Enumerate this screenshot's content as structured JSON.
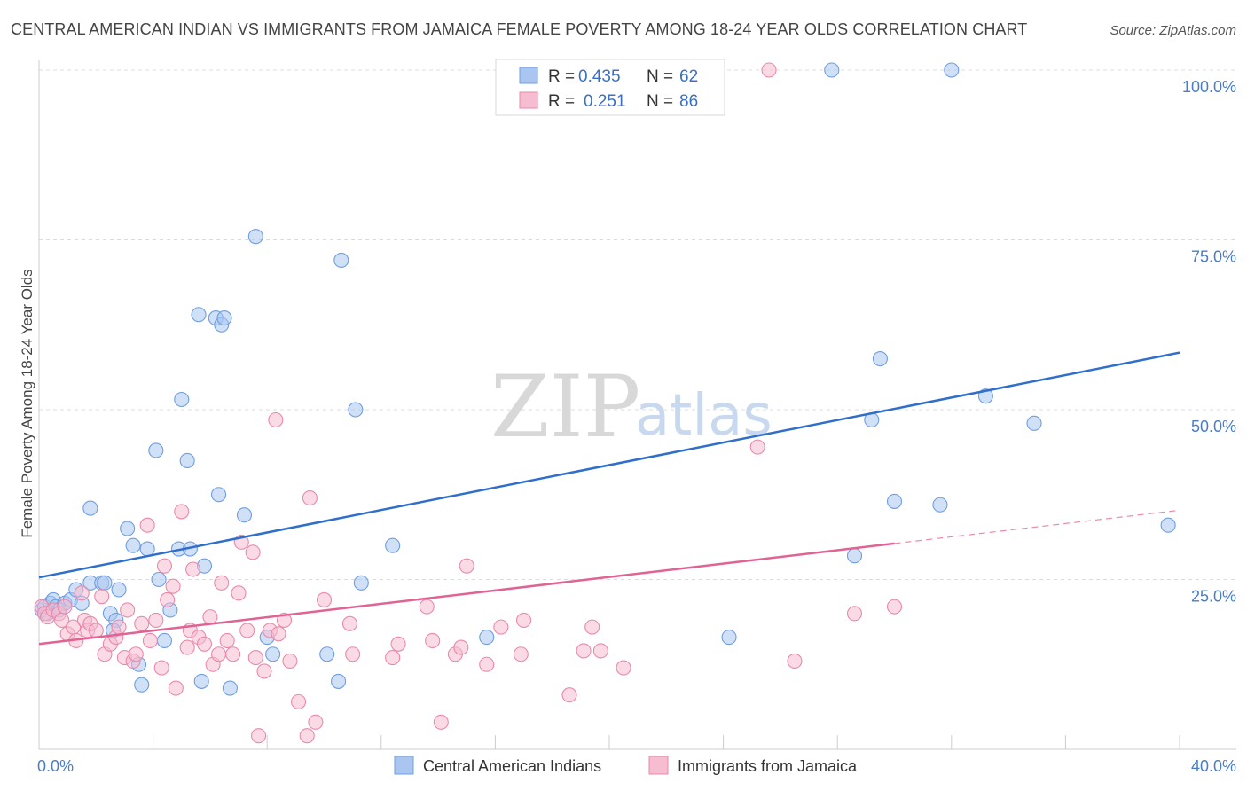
{
  "chart_data": {
    "type": "scatter",
    "title": "CENTRAL AMERICAN INDIAN VS IMMIGRANTS FROM JAMAICA FEMALE POVERTY AMONG 18-24 YEAR OLDS CORRELATION CHART",
    "source": "Source: ZipAtlas.com",
    "xlabel": "",
    "ylabel": "Female Poverty Among 18-24 Year Olds",
    "xlim": [
      0,
      40
    ],
    "ylim": [
      0,
      100
    ],
    "x_tick_labels": {
      "left": "0.0%",
      "right": "40.0%"
    },
    "y_ticks": [
      {
        "value": 25,
        "label": "25.0%"
      },
      {
        "value": 50,
        "label": "50.0%"
      },
      {
        "value": 75,
        "label": "75.0%"
      },
      {
        "value": 100,
        "label": "100.0%"
      }
    ],
    "grid": true,
    "watermark": {
      "part1": "ZIP",
      "part2": "atlas"
    },
    "legend": {
      "r_label": "R =",
      "n_label": "N =",
      "entries": [
        {
          "series": "Central American Indians",
          "r": "0.435",
          "n": "62"
        },
        {
          "series": "Immigrants from Jamaica",
          "r": "0.251",
          "n": "86"
        }
      ]
    },
    "series": [
      {
        "name": "Central American Indians",
        "color": "#6f9ee0",
        "fill": "#aac6f0",
        "trend": {
          "x0": 0,
          "y0": 25.3,
          "x1": 40,
          "y1": 58.4,
          "dashed_to": null
        },
        "points": [
          [
            0.1,
            20.5
          ],
          [
            0.2,
            21.0
          ],
          [
            0.3,
            20.0
          ],
          [
            0.4,
            21.5
          ],
          [
            0.5,
            22.0
          ],
          [
            0.6,
            21.0
          ],
          [
            0.7,
            20.5
          ],
          [
            0.9,
            21.5
          ],
          [
            1.1,
            22.0
          ],
          [
            1.3,
            23.5
          ],
          [
            1.5,
            21.5
          ],
          [
            1.8,
            24.5
          ],
          [
            2.2,
            24.5
          ],
          [
            2.5,
            20.0
          ],
          [
            2.8,
            23.5
          ],
          [
            2.7,
            19.0
          ],
          [
            2.6,
            17.5
          ],
          [
            3.1,
            32.5
          ],
          [
            3.3,
            30.0
          ],
          [
            3.5,
            12.5
          ],
          [
            3.8,
            29.5
          ],
          [
            4.1,
            44.0
          ],
          [
            4.2,
            25.0
          ],
          [
            4.4,
            16.0
          ],
          [
            4.6,
            20.5
          ],
          [
            4.9,
            29.5
          ],
          [
            5.0,
            51.5
          ],
          [
            5.2,
            42.5
          ],
          [
            5.3,
            29.5
          ],
          [
            5.6,
            64.0
          ],
          [
            5.7,
            10.0
          ],
          [
            5.8,
            27.0
          ],
          [
            6.2,
            63.5
          ],
          [
            6.3,
            37.5
          ],
          [
            6.4,
            62.5
          ],
          [
            6.5,
            63.5
          ],
          [
            6.7,
            9.0
          ],
          [
            7.2,
            34.5
          ],
          [
            7.6,
            75.5
          ],
          [
            8.0,
            16.5
          ],
          [
            8.2,
            14.0
          ],
          [
            10.6,
            72.0
          ],
          [
            11.1,
            50.0
          ],
          [
            10.5,
            10.0
          ],
          [
            10.1,
            14.0
          ],
          [
            11.3,
            24.5
          ],
          [
            12.4,
            30.0
          ],
          [
            15.7,
            16.5
          ],
          [
            24.2,
            16.5
          ],
          [
            27.8,
            100.0
          ],
          [
            29.5,
            57.5
          ],
          [
            28.6,
            28.5
          ],
          [
            29.2,
            48.5
          ],
          [
            30.0,
            36.5
          ],
          [
            31.6,
            36.0
          ],
          [
            32.0,
            100.0
          ],
          [
            33.2,
            52.0
          ],
          [
            34.9,
            48.0
          ],
          [
            39.6,
            33.0
          ],
          [
            1.8,
            35.5
          ],
          [
            3.6,
            9.5
          ],
          [
            2.3,
            24.5
          ]
        ]
      },
      {
        "name": "Immigrants from Jamaica",
        "color": "#e98aab",
        "fill": "#f6bcd0",
        "trend": {
          "x0": 0,
          "y0": 15.5,
          "x1": 30,
          "y1": 30.3,
          "dashed_to": {
            "x": 40,
            "y": 35.2
          }
        },
        "points": [
          [
            0.1,
            21.0
          ],
          [
            0.2,
            20.0
          ],
          [
            0.3,
            19.5
          ],
          [
            0.5,
            20.5
          ],
          [
            0.7,
            20.0
          ],
          [
            0.8,
            19.0
          ],
          [
            0.9,
            21.0
          ],
          [
            1.0,
            17.0
          ],
          [
            1.2,
            18.0
          ],
          [
            1.3,
            16.0
          ],
          [
            1.5,
            23.0
          ],
          [
            1.6,
            19.0
          ],
          [
            1.7,
            17.5
          ],
          [
            1.8,
            18.5
          ],
          [
            2.0,
            17.5
          ],
          [
            2.2,
            22.5
          ],
          [
            2.3,
            14.0
          ],
          [
            2.5,
            15.5
          ],
          [
            2.7,
            16.5
          ],
          [
            2.8,
            18.0
          ],
          [
            3.0,
            13.5
          ],
          [
            3.1,
            20.5
          ],
          [
            3.3,
            13.0
          ],
          [
            3.4,
            14.0
          ],
          [
            3.6,
            18.5
          ],
          [
            3.8,
            33.0
          ],
          [
            3.9,
            16.0
          ],
          [
            4.1,
            19.0
          ],
          [
            4.3,
            12.0
          ],
          [
            4.4,
            27.0
          ],
          [
            4.5,
            22.0
          ],
          [
            4.7,
            24.0
          ],
          [
            4.8,
            9.0
          ],
          [
            5.0,
            35.0
          ],
          [
            5.2,
            15.0
          ],
          [
            5.3,
            17.5
          ],
          [
            5.4,
            26.5
          ],
          [
            5.6,
            16.5
          ],
          [
            5.8,
            15.5
          ],
          [
            6.0,
            19.5
          ],
          [
            6.1,
            12.5
          ],
          [
            6.3,
            14.0
          ],
          [
            6.4,
            24.5
          ],
          [
            6.6,
            16.0
          ],
          [
            6.8,
            14.0
          ],
          [
            7.0,
            23.0
          ],
          [
            7.1,
            30.5
          ],
          [
            7.3,
            17.5
          ],
          [
            7.5,
            29.0
          ],
          [
            7.6,
            13.5
          ],
          [
            7.7,
            2.0
          ],
          [
            7.9,
            11.5
          ],
          [
            8.1,
            17.5
          ],
          [
            8.3,
            48.5
          ],
          [
            8.4,
            17.0
          ],
          [
            8.6,
            19.0
          ],
          [
            8.8,
            13.0
          ],
          [
            9.1,
            7.0
          ],
          [
            9.4,
            2.0
          ],
          [
            9.5,
            37.0
          ],
          [
            9.7,
            4.0
          ],
          [
            10.0,
            22.0
          ],
          [
            10.9,
            18.5
          ],
          [
            11.0,
            14.0
          ],
          [
            12.4,
            13.5
          ],
          [
            12.6,
            15.5
          ],
          [
            13.6,
            21.0
          ],
          [
            13.8,
            16.0
          ],
          [
            14.1,
            4.0
          ],
          [
            14.6,
            14.0
          ],
          [
            14.8,
            15.0
          ],
          [
            15.0,
            27.0
          ],
          [
            15.7,
            12.5
          ],
          [
            16.2,
            18.0
          ],
          [
            16.9,
            14.0
          ],
          [
            17.0,
            19.0
          ],
          [
            18.6,
            8.0
          ],
          [
            19.1,
            14.5
          ],
          [
            19.4,
            18.0
          ],
          [
            19.7,
            14.5
          ],
          [
            25.2,
            44.5
          ],
          [
            25.6,
            100.0
          ],
          [
            28.6,
            20.0
          ],
          [
            30.0,
            21.0
          ],
          [
            26.5,
            13.0
          ],
          [
            20.5,
            12.0
          ]
        ]
      }
    ]
  }
}
